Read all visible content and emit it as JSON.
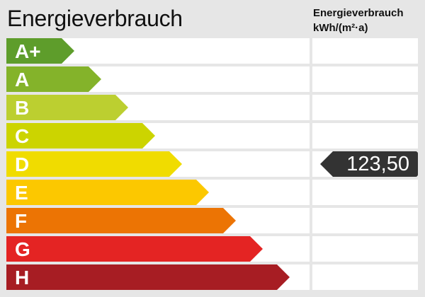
{
  "title": "Energieverbrauch",
  "unit_line1": "Energieverbrauch",
  "unit_line2": "kWh/(m²·a)",
  "chart_data": {
    "type": "bar",
    "categories": [
      "A+",
      "A",
      "B",
      "C",
      "D",
      "E",
      "F",
      "G",
      "H"
    ],
    "colors": [
      "#5e9d2b",
      "#84b32a",
      "#bccf30",
      "#ccd400",
      "#f0dc00",
      "#fcc800",
      "#ec7404",
      "#e42423",
      "#a71d23"
    ],
    "selected_class": "D",
    "value": 123.5,
    "value_label": "123,50"
  }
}
